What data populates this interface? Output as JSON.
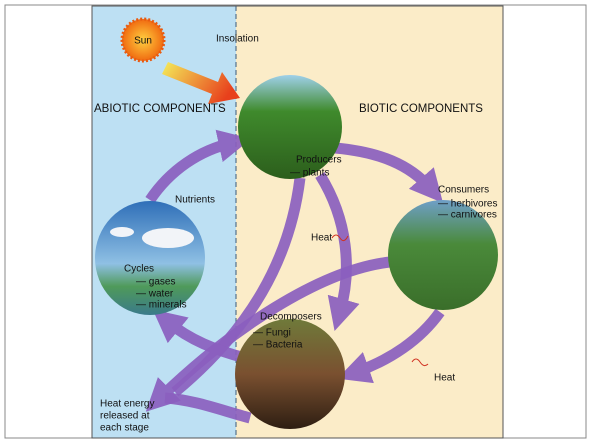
{
  "sun": "Sun",
  "insolation": "Insolation",
  "sections": {
    "abiotic": "ABIOTIC COMPONENTS",
    "biotic": "BIOTIC COMPONENTS"
  },
  "nodes": [
    {
      "label": "Producers",
      "items": [
        "— plants"
      ]
    },
    {
      "label": "Consumers",
      "items": [
        "— herbivores",
        "— carnivores"
      ]
    },
    {
      "label": "Cycles",
      "items": [
        "— gases",
        "— water",
        "— minerals"
      ]
    },
    {
      "label": "Decomposers",
      "items": [
        "— Fungi",
        "— Bacteria"
      ]
    }
  ],
  "flows": {
    "nutrients": "Nutrients",
    "heat_upper": "Heat",
    "heat_lower": "Heat",
    "heat_energy": [
      "Heat energy",
      "released at",
      "each stage"
    ]
  }
}
